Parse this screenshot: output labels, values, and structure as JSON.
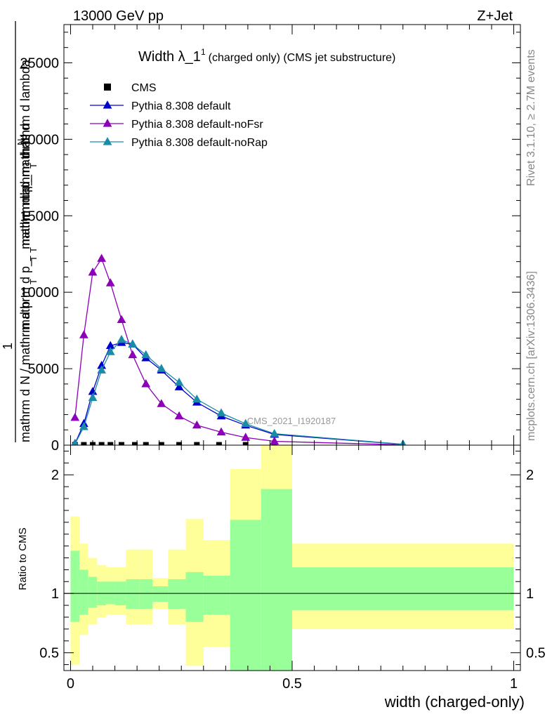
{
  "header": {
    "energy": "13000 GeV pp",
    "process": "Z+Jet"
  },
  "side_labels": {
    "rivet": "Rivet 3.1.10, ≥ 2.7M events",
    "mcplots": "mcplots.cern.ch [arXiv:1306.3436]"
  },
  "watermark": "CMS_2021_I1920187",
  "chart_data": [
    {
      "type": "line",
      "panel": "main",
      "title_main": "Width λ_1",
      "title_sup": "1",
      "title_sub": "(charged only) (CMS jet substructure)",
      "ylabel_lines": [
        "mathrm d",
        "N",
        "mathrm d p_",
        "T",
        " mathrm d lambda",
        "mathrm d p_",
        "T",
        " mathrm d",
        "1",
        "mathrm d",
        "N / mathrm d p",
        "T",
        " mathrm d p_",
        "T"
      ],
      "xlim": [
        -0.015,
        1.015
      ],
      "ylim": [
        0,
        27500
      ],
      "yticks": [
        0,
        5000,
        10000,
        15000,
        20000,
        25000
      ],
      "ytick_labels": [
        "0",
        "5000",
        "10000",
        "15000",
        "20000",
        "25000"
      ],
      "legend_position": "top-left",
      "series": [
        {
          "name": "CMS",
          "color": "#000000",
          "marker": "square",
          "x": [
            0.01,
            0.03,
            0.05,
            0.07,
            0.09,
            0.115,
            0.145,
            0.17,
            0.205,
            0.245,
            0.285,
            0.335,
            0.395,
            0.46
          ],
          "y": [
            20,
            20,
            20,
            20,
            20,
            20,
            20,
            20,
            20,
            20,
            20,
            20,
            20,
            20
          ]
        },
        {
          "name": "Pythia 8.308 default",
          "color": "#0000cc",
          "marker": "triangle",
          "x": [
            0.01,
            0.03,
            0.05,
            0.07,
            0.09,
            0.115,
            0.14,
            0.17,
            0.205,
            0.245,
            0.285,
            0.34,
            0.395,
            0.46,
            0.75
          ],
          "y": [
            100,
            1400,
            3500,
            5200,
            6500,
            6700,
            6600,
            5700,
            4900,
            3800,
            2800,
            1900,
            1300,
            700,
            50
          ]
        },
        {
          "name": "Pythia 8.308 default-noFsr",
          "color": "#8b00b8",
          "marker": "triangle",
          "x": [
            0.01,
            0.03,
            0.05,
            0.07,
            0.09,
            0.115,
            0.14,
            0.17,
            0.205,
            0.245,
            0.285,
            0.34,
            0.395,
            0.46,
            0.75
          ],
          "y": [
            1800,
            7200,
            11300,
            12200,
            10600,
            8200,
            5900,
            4000,
            2700,
            1900,
            1300,
            850,
            500,
            250,
            20
          ]
        },
        {
          "name": "Pythia 8.308 default-noRap",
          "color": "#1a8ca8",
          "marker": "triangle",
          "x": [
            0.01,
            0.03,
            0.05,
            0.07,
            0.09,
            0.115,
            0.14,
            0.17,
            0.205,
            0.245,
            0.285,
            0.34,
            0.395,
            0.46,
            0.75
          ],
          "y": [
            80,
            1200,
            3100,
            4900,
            6100,
            6900,
            6600,
            5900,
            5000,
            4100,
            3000,
            2100,
            1400,
            750,
            60
          ]
        }
      ]
    },
    {
      "type": "area",
      "panel": "ratio",
      "xlabel": "width (charged-only)",
      "ylabel": "Ratio to CMS",
      "xlim": [
        -0.015,
        1.015
      ],
      "ylim": [
        0.35,
        2.25
      ],
      "xticks": [
        0,
        0.5,
        1
      ],
      "xtick_labels": [
        "0",
        "0.5",
        "1"
      ],
      "yticks": [
        0.5,
        1,
        2
      ],
      "ytick_labels": [
        "0.5",
        "1",
        "2"
      ],
      "reference_line": 1,
      "bins": [
        {
          "lo": 0.0,
          "hi": 0.02,
          "in_lo": 0.76,
          "in_hi": 1.36,
          "out_lo": 0.4,
          "out_hi": 1.65
        },
        {
          "lo": 0.02,
          "hi": 0.04,
          "in_lo": 0.82,
          "in_hi": 1.2,
          "out_lo": 0.65,
          "out_hi": 1.42
        },
        {
          "lo": 0.04,
          "hi": 0.06,
          "in_lo": 0.88,
          "in_hi": 1.14,
          "out_lo": 0.74,
          "out_hi": 1.3
        },
        {
          "lo": 0.06,
          "hi": 0.08,
          "in_lo": 0.9,
          "in_hi": 1.1,
          "out_lo": 0.8,
          "out_hi": 1.24
        },
        {
          "lo": 0.08,
          "hi": 0.1,
          "in_lo": 0.91,
          "in_hi": 1.1,
          "out_lo": 0.82,
          "out_hi": 1.22
        },
        {
          "lo": 0.1,
          "hi": 0.125,
          "in_lo": 0.9,
          "in_hi": 1.1,
          "out_lo": 0.82,
          "out_hi": 1.22
        },
        {
          "lo": 0.125,
          "hi": 0.155,
          "in_lo": 0.87,
          "in_hi": 1.12,
          "out_lo": 0.74,
          "out_hi": 1.37
        },
        {
          "lo": 0.155,
          "hi": 0.185,
          "in_lo": 0.87,
          "in_hi": 1.12,
          "out_lo": 0.74,
          "out_hi": 1.37
        },
        {
          "lo": 0.185,
          "hi": 0.22,
          "in_lo": 0.93,
          "in_hi": 1.06,
          "out_lo": 0.87,
          "out_hi": 1.13
        },
        {
          "lo": 0.22,
          "hi": 0.26,
          "in_lo": 0.87,
          "in_hi": 1.12,
          "out_lo": 0.74,
          "out_hi": 1.37
        },
        {
          "lo": 0.26,
          "hi": 0.3,
          "in_lo": 0.76,
          "in_hi": 1.18,
          "out_lo": 0.39,
          "out_hi": 1.63
        },
        {
          "lo": 0.3,
          "hi": 0.36,
          "in_lo": 0.82,
          "in_hi": 1.15,
          "out_lo": 0.55,
          "out_hi": 1.45
        },
        {
          "lo": 0.36,
          "hi": 0.43,
          "in_lo": 0.18,
          "in_hi": 1.62,
          "out_lo": 0.0,
          "out_hi": 2.05
        },
        {
          "lo": 0.43,
          "hi": 0.5,
          "in_lo": 0.0,
          "in_hi": 1.88,
          "out_lo": 0.0,
          "out_hi": 2.4
        },
        {
          "lo": 0.5,
          "hi": 1.0,
          "in_lo": 0.86,
          "in_hi": 1.22,
          "out_lo": 0.7,
          "out_hi": 1.42
        }
      ],
      "colors": {
        "inner": "#99ff99",
        "outer": "#ffff99",
        "reference": "#000000"
      }
    }
  ]
}
